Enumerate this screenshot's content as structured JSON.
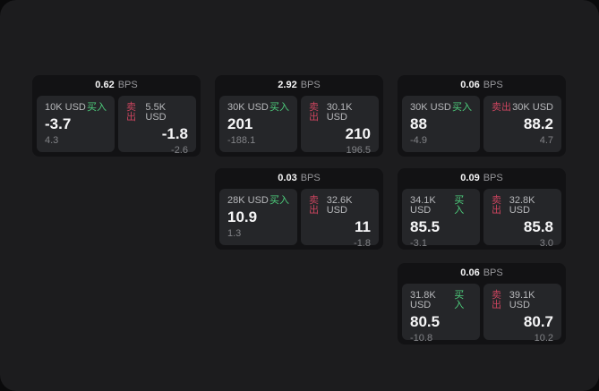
{
  "window": {
    "bps_unit": "BPS",
    "buy_label": "买入",
    "sell_label": "卖出",
    "colors": {
      "outer_bg": "#0a0a0b",
      "panel_bg": "#1c1c1e",
      "card_bg": "#121214",
      "tile_bg": "#252629",
      "buy_green": "#4dcd7c",
      "sell_red": "#c9445e",
      "text_primary": "#f6f6f7",
      "text_secondary": "#b7b8bb",
      "text_muted": "#828387"
    }
  },
  "cards": [
    {
      "bps": "0.62",
      "col": 0,
      "row": 0,
      "buy": {
        "size": "10K USD",
        "price": "-3.7",
        "change": "4.3"
      },
      "sell": {
        "size": "5.5K USD",
        "price": "-1.8",
        "change": "-2.6"
      }
    },
    {
      "bps": "2.92",
      "col": 1,
      "row": 0,
      "buy": {
        "size": "30K USD",
        "price": "201",
        "change": "-188.1"
      },
      "sell": {
        "size": "30.1K USD",
        "price": "210",
        "change": "196.5"
      }
    },
    {
      "bps": "0.06",
      "col": 2,
      "row": 0,
      "buy": {
        "size": "30K USD",
        "price": "88",
        "change": "-4.9"
      },
      "sell": {
        "size": "30K USD",
        "price": "88.2",
        "change": "4.7"
      }
    },
    {
      "bps": "0.03",
      "col": 1,
      "row": 1,
      "buy": {
        "size": "28K USD",
        "price": "10.9",
        "change": "1.3"
      },
      "sell": {
        "size": "32.6K USD",
        "price": "11",
        "change": "-1.8"
      }
    },
    {
      "bps": "0.09",
      "col": 2,
      "row": 1,
      "buy": {
        "size": "34.1K USD",
        "price": "85.5",
        "change": "-3.1"
      },
      "sell": {
        "size": "32.8K USD",
        "price": "85.8",
        "change": "3.0"
      }
    },
    {
      "bps": "0.06",
      "col": 2,
      "row": 2,
      "buy": {
        "size": "31.8K USD",
        "price": "80.5",
        "change": "-10.8"
      },
      "sell": {
        "size": "39.1K USD",
        "price": "80.7",
        "change": "10.2"
      }
    }
  ]
}
